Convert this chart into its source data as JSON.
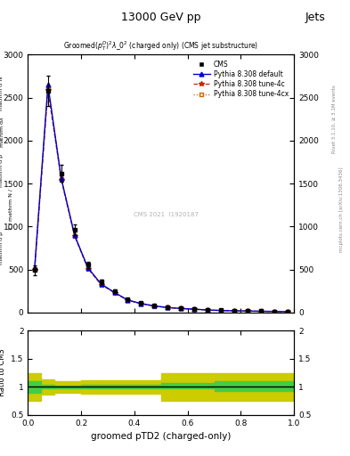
{
  "title_top": "13000 GeV pp",
  "title_top_right": "Jets",
  "plot_title": "Groomed$(p_T^D)^2\\lambda\\_0^2$ (charged only) (CMS jet substructure)",
  "xlabel": "groomed pTD2 (charged-only)",
  "ylabel_main_lines": [
    "mathrm d^2N",
    "mathrm d\\lambda",
    "mathrm d p",
    "mathrm d p",
    "1 / mathrm N /",
    "mathrm d p"
  ],
  "ylabel_ratio": "Ratio to CMS",
  "right_label": "mcplots.cern.ch [arXiv:1306.3436]",
  "right_label2": "Rivet 3.1.10, ≥ 3.1M events",
  "watermark": "CMS 2021  I1920187",
  "xlim": [
    0,
    1
  ],
  "ylim_main": [
    0,
    3000
  ],
  "ylim_ratio": [
    0.5,
    2.0
  ],
  "yticks_main": [
    0,
    500,
    1000,
    1500,
    2000,
    2500,
    3000
  ],
  "yticks_ratio": [
    0.5,
    1.0,
    1.5,
    2.0
  ],
  "x_data": [
    0.025,
    0.075,
    0.125,
    0.175,
    0.225,
    0.275,
    0.325,
    0.375,
    0.425,
    0.475,
    0.525,
    0.575,
    0.625,
    0.675,
    0.725,
    0.775,
    0.825,
    0.875,
    0.925,
    0.975
  ],
  "cms_y": [
    490,
    2580,
    1620,
    960,
    555,
    355,
    248,
    155,
    108,
    78,
    58,
    48,
    38,
    30,
    24,
    20,
    17,
    14,
    11,
    9
  ],
  "cms_yerr": [
    60,
    180,
    100,
    60,
    35,
    22,
    16,
    10,
    7,
    5,
    4,
    3,
    2.5,
    2,
    1.5,
    1.2,
    1.1,
    1.0,
    0.8,
    0.6
  ],
  "pythia_default_y": [
    520,
    2650,
    1560,
    900,
    520,
    330,
    232,
    143,
    103,
    75,
    56,
    46,
    37,
    28,
    22,
    18,
    16,
    13,
    11,
    9
  ],
  "pythia_4c_y": [
    500,
    2590,
    1545,
    890,
    510,
    322,
    228,
    140,
    101,
    73,
    55,
    45,
    36,
    27,
    21,
    17,
    15,
    12.5,
    10,
    8
  ],
  "pythia_4cx_y": [
    505,
    2610,
    1550,
    893,
    512,
    324,
    230,
    141,
    102,
    74,
    55.5,
    45.5,
    36.5,
    27.5,
    21.5,
    17.5,
    15.5,
    13,
    10.5,
    8.5
  ],
  "ratio_x_edges": [
    0.0,
    0.05,
    0.1,
    0.2,
    0.5,
    0.7,
    1.0
  ],
  "ratio_green_lo": [
    0.9,
    0.97,
    0.98,
    0.97,
    0.97,
    0.93
  ],
  "ratio_green_hi": [
    1.1,
    1.03,
    1.02,
    1.03,
    1.07,
    1.1
  ],
  "ratio_yellow_lo": [
    0.75,
    0.87,
    0.9,
    0.88,
    0.75,
    0.75
  ],
  "ratio_yellow_hi": [
    1.25,
    1.13,
    1.1,
    1.12,
    1.25,
    1.25
  ],
  "cms_color": "black",
  "pythia_default_color": "#0000cc",
  "pythia_4c_color": "#cc2200",
  "pythia_4cx_color": "#cc6600",
  "green_color": "#44cc44",
  "yellow_color": "#cccc00",
  "background_color": "#ffffff"
}
